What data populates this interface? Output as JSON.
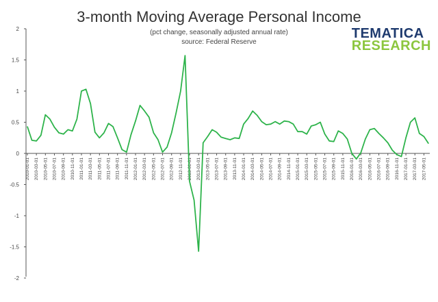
{
  "title": "3-month Moving Average Personal Income",
  "subtitle": "(pct change, seasonally adjusted annual rate)",
  "source": "source: Federal Reserve",
  "logo": {
    "line1": "TEMATICA",
    "line2": "RESEARCH"
  },
  "colors": {
    "line": "#2db34a",
    "axis": "#555555",
    "grid": "#dddddd"
  },
  "chart_data": {
    "type": "line",
    "title": "3-month Moving Average Personal Income",
    "subtitle": "(pct change, seasonally adjusted annual rate)",
    "ylim": [
      -2,
      2
    ],
    "yticks": [
      2,
      1.5,
      1,
      0.5,
      0,
      -0.5,
      -1,
      -1.5,
      -2
    ],
    "ytick_labels": [
      "2",
      "1.5",
      "1",
      "0.5",
      "0",
      "-0.5",
      "-1",
      "-1.5",
      "-2"
    ],
    "grid": false,
    "legend": "none",
    "x": [
      "2010-01-01",
      "2010-02-01",
      "2010-03-01",
      "2010-04-01",
      "2010-05-01",
      "2010-06-01",
      "2010-07-01",
      "2010-08-01",
      "2010-09-01",
      "2010-10-01",
      "2010-11-01",
      "2010-12-01",
      "2011-01-01",
      "2011-02-01",
      "2011-03-01",
      "2011-04-01",
      "2011-05-01",
      "2011-06-01",
      "2011-07-01",
      "2011-08-01",
      "2011-09-01",
      "2011-10-01",
      "2011-11-01",
      "2011-12-01",
      "2012-01-01",
      "2012-02-01",
      "2012-03-01",
      "2012-04-01",
      "2012-05-01",
      "2012-06-01",
      "2012-07-01",
      "2012-08-01",
      "2012-09-01",
      "2012-10-01",
      "2012-11-01",
      "2012-12-01",
      "2013-01-01",
      "2013-02-01",
      "2013-03-01",
      "2013-04-01",
      "2013-05-01",
      "2013-06-01",
      "2013-07-01",
      "2013-08-01",
      "2013-09-01",
      "2013-10-01",
      "2013-11-01",
      "2013-12-01",
      "2014-01-01",
      "2014-02-01",
      "2014-03-01",
      "2014-04-01",
      "2014-05-01",
      "2014-06-01",
      "2014-07-01",
      "2014-08-01",
      "2014-09-01",
      "2014-10-01",
      "2014-11-01",
      "2014-12-01",
      "2015-01-01",
      "2015-02-01",
      "2015-03-01",
      "2015-04-01",
      "2015-05-01",
      "2015-06-01",
      "2015-07-01",
      "2015-08-01",
      "2015-09-01",
      "2015-10-01",
      "2015-11-01",
      "2015-12-01",
      "2016-01-01",
      "2016-02-01",
      "2016-03-01",
      "2016-04-01",
      "2016-05-01",
      "2016-06-01",
      "2016-07-01",
      "2016-08-01",
      "2016-09-01",
      "2016-10-01",
      "2016-11-01",
      "2016-12-01",
      "2017-01-01",
      "2017-02-01",
      "2017-03-01",
      "2017-04-01",
      "2017-05-01",
      "2017-06-01"
    ],
    "xtick_labels": [
      "2010-01-01",
      "2010-03-01",
      "2010-05-01",
      "2010-07-01",
      "2010-09-01",
      "2010-11-01",
      "2011-01-01",
      "2011-03-01",
      "2011-05-01",
      "2011-07-01",
      "2011-09-01",
      "2011-11-01",
      "2012-01-01",
      "2012-03-01",
      "2012-05-01",
      "2012-07-01",
      "2012-09-01",
      "2012-11-01",
      "2013-01-01",
      "2013-03-01",
      "2013-05-01",
      "2013-07-01",
      "2013-09-01",
      "2013-11-01",
      "2014-01-01",
      "2014-03-01",
      "2014-05-01",
      "2014-07-01",
      "2014-09-01",
      "2014-11-01",
      "2015-01-01",
      "2015-03-01",
      "2015-05-01",
      "2015-07-01",
      "2015-09-01",
      "2015-11-01",
      "2016-01-01",
      "2016-03-01",
      "2016-05-01",
      "2016-07-01",
      "2016-09-01",
      "2016-11-01",
      "2017-01-01",
      "2017-03-01",
      "2017-05-01"
    ],
    "series": [
      {
        "values": [
          0.43,
          0.21,
          0.2,
          0.29,
          0.62,
          0.55,
          0.42,
          0.33,
          0.31,
          0.38,
          0.36,
          0.55,
          1.0,
          1.03,
          0.8,
          0.34,
          0.25,
          0.33,
          0.48,
          0.43,
          0.25,
          0.06,
          0.02,
          0.3,
          0.52,
          0.77,
          0.68,
          0.58,
          0.33,
          0.22,
          0.02,
          0.1,
          0.33,
          0.65,
          1.0,
          1.57,
          -0.45,
          -0.75,
          -1.57,
          0.17,
          0.27,
          0.38,
          0.34,
          0.26,
          0.24,
          0.22,
          0.25,
          0.24,
          0.47,
          0.56,
          0.68,
          0.61,
          0.51,
          0.46,
          0.47,
          0.51,
          0.47,
          0.52,
          0.51,
          0.47,
          0.35,
          0.35,
          0.31,
          0.44,
          0.46,
          0.5,
          0.31,
          0.2,
          0.19,
          0.36,
          0.32,
          0.23,
          0.0,
          -0.09,
          0.01,
          0.23,
          0.38,
          0.4,
          0.32,
          0.25,
          0.17,
          0.05,
          -0.02,
          -0.05,
          0.25,
          0.5,
          0.57,
          0.32,
          0.27,
          0.16
        ]
      }
    ]
  }
}
